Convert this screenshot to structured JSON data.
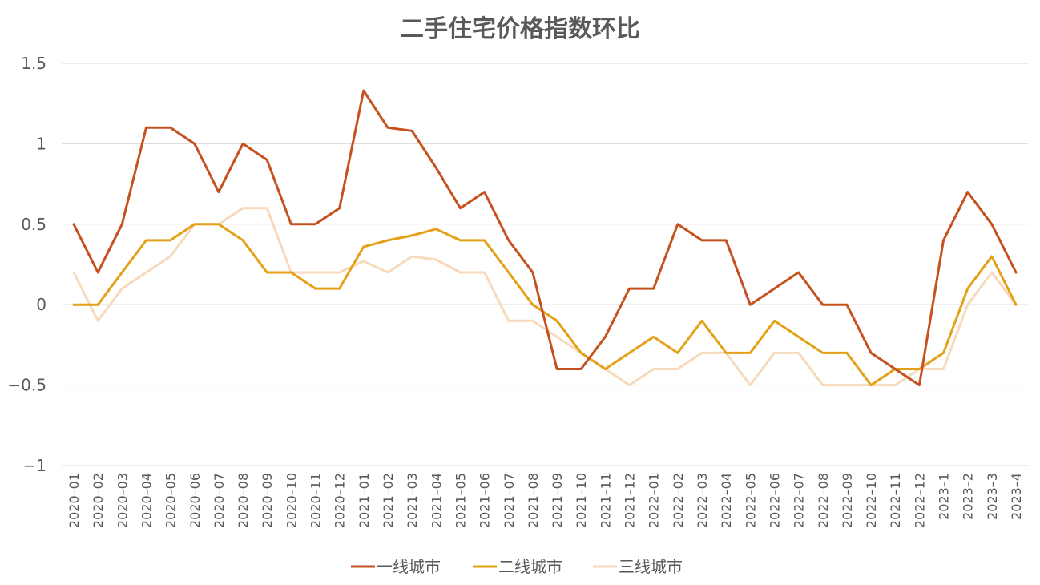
{
  "chart_data": {
    "type": "line",
    "title": "二手住宅价格指数环比",
    "xlabel": "",
    "ylabel": "",
    "ylim": [
      -1,
      1.5
    ],
    "yticks": [
      1.5,
      1,
      0.5,
      0,
      -0.5,
      -1
    ],
    "ytick_labels": [
      "1.5",
      "1",
      "0.5",
      "0",
      "−0.5",
      "−1"
    ],
    "grid": true,
    "legend_position": "bottom",
    "categories": [
      "2020–01",
      "2020–02",
      "2020–03",
      "2020–04",
      "2020–05",
      "2020–06",
      "2020–07",
      "2020–08",
      "2020–09",
      "2020–10",
      "2020–11",
      "2020–12",
      "2021–01",
      "2021–02",
      "2021–03",
      "2021–04",
      "2021–05",
      "2021–06",
      "2021–07",
      "2021–08",
      "2021–09",
      "2021–10",
      "2021–11",
      "2021–12",
      "2022–01",
      "2022–02",
      "2022–03",
      "2022–04",
      "2022–05",
      "2022–06",
      "2022–07",
      "2022–08",
      "2022–09",
      "2022–10",
      "2022–11",
      "2022–12",
      "2023–1",
      "2023–2",
      "2023–3",
      "2023–4"
    ],
    "series": [
      {
        "name": "一线城市",
        "color": "#C5511E",
        "values": [
          0.5,
          0.2,
          0.5,
          1.1,
          1.1,
          1.0,
          0.7,
          1.0,
          0.9,
          0.5,
          0.5,
          0.6,
          1.33,
          1.1,
          1.08,
          0.85,
          0.6,
          0.7,
          0.4,
          0.2,
          -0.4,
          -0.4,
          -0.2,
          0.1,
          0.1,
          0.5,
          0.4,
          0.4,
          0.0,
          0.1,
          0.2,
          0.0,
          0.0,
          -0.3,
          -0.4,
          -0.5,
          0.4,
          0.7,
          0.5,
          0.2
        ]
      },
      {
        "name": "二线城市",
        "color": "#E4A117",
        "values": [
          0.0,
          0.0,
          0.2,
          0.4,
          0.4,
          0.5,
          0.5,
          0.4,
          0.2,
          0.2,
          0.1,
          0.1,
          0.36,
          0.4,
          0.43,
          0.47,
          0.4,
          0.4,
          0.2,
          0.0,
          -0.1,
          -0.3,
          -0.4,
          -0.3,
          -0.2,
          -0.3,
          -0.1,
          -0.3,
          -0.3,
          -0.1,
          -0.2,
          -0.3,
          -0.3,
          -0.5,
          -0.4,
          -0.4,
          -0.3,
          0.1,
          0.3,
          0.0
        ]
      },
      {
        "name": "三线城市",
        "color": "#F7D9BC",
        "values": [
          0.2,
          -0.1,
          0.1,
          0.2,
          0.3,
          0.5,
          0.5,
          0.6,
          0.6,
          0.2,
          0.2,
          0.2,
          0.27,
          0.2,
          0.3,
          0.28,
          0.2,
          0.2,
          -0.1,
          -0.1,
          -0.2,
          -0.3,
          -0.4,
          -0.5,
          -0.4,
          -0.4,
          -0.3,
          -0.3,
          -0.5,
          -0.3,
          -0.3,
          -0.5,
          -0.5,
          -0.5,
          -0.5,
          -0.4,
          -0.4,
          0.0,
          0.2,
          0.0
        ]
      }
    ]
  }
}
